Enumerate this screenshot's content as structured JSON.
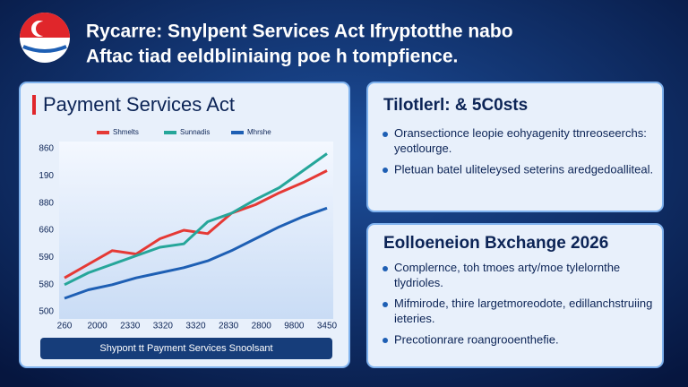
{
  "header": {
    "title_lines": [
      "Rycarre: Snylpent Services Act Ifryptotthe nabo",
      "Aftac tiad eeldbliniaing poe h tompfience."
    ]
  },
  "left_panel": {
    "title": "Payment Services Act",
    "chart": {
      "type": "line",
      "y_axis_labels": [
        "860",
        "190",
        "880",
        "660",
        "590",
        "580",
        "500"
      ],
      "x_axis_labels": [
        "260",
        "2000",
        "2330",
        "3320",
        "3320",
        "2830",
        "2800",
        "9800",
        "3450"
      ],
      "ylim": [
        0,
        100
      ],
      "series": [
        {
          "name": "Shmelts",
          "color": "#e53935",
          "values": [
            22,
            30,
            38,
            36,
            45,
            50,
            48,
            60,
            65,
            72,
            78,
            85
          ]
        },
        {
          "name": "Sunnadis",
          "color": "#26a69a",
          "values": [
            18,
            25,
            30,
            35,
            40,
            42,
            55,
            60,
            68,
            75,
            85,
            95
          ]
        },
        {
          "name": "Mhrshe",
          "color": "#1e5fb4",
          "values": [
            10,
            15,
            18,
            22,
            25,
            28,
            32,
            38,
            45,
            52,
            58,
            63
          ]
        }
      ]
    },
    "caption": "Shypont tt Payment Services Snoolsant"
  },
  "right_top": {
    "title": "Tilotlerl: & 5C0sts",
    "bullets": [
      "Oransectionce leopie eohyagenity ttnreoseerchs: yeotlourge.",
      "Pletuan batel uliteleysed seterins aredgedoalliteal."
    ]
  },
  "right_bottom": {
    "title": "Eolloeneion Bxchange 2026",
    "bullets": [
      "Complernce, toh tmoes arty/moe tylelornthe tlydrioles.",
      "Mifmirode, thire largetmoreodote, edillanchstruiing ieteries.",
      "Precotionrare roangrooenthefie."
    ]
  }
}
